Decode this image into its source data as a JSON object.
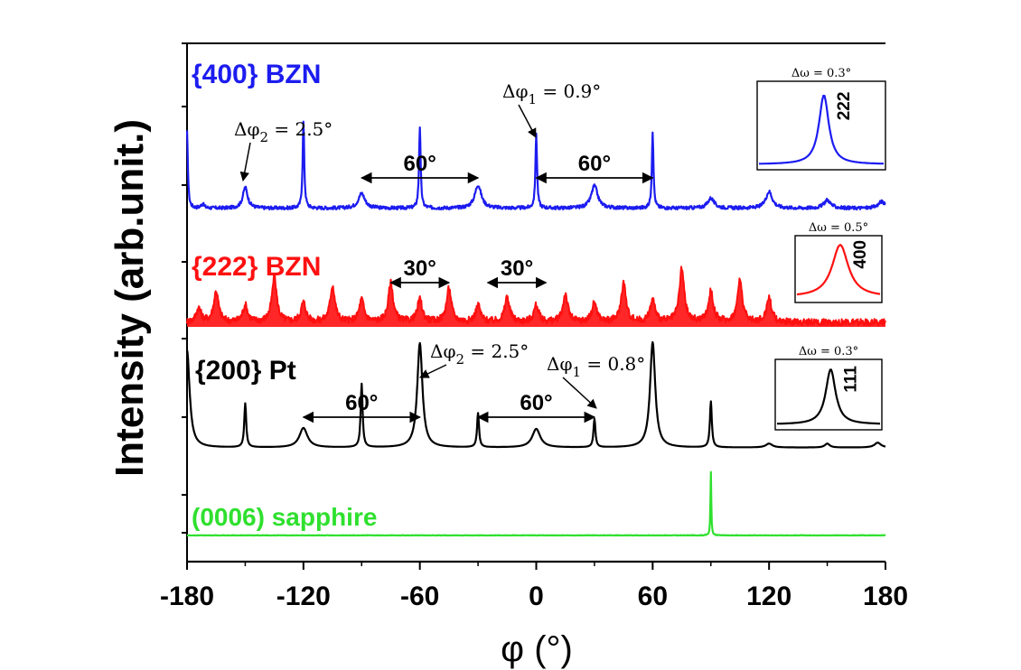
{
  "chart_data": {
    "type": "line",
    "xlabel": "φ (°)",
    "ylabel": "Intensity (arb.unit.)",
    "xlim": [
      -180,
      180
    ],
    "x_ticks": [
      -180,
      -120,
      -60,
      0,
      60,
      120,
      180
    ],
    "x_tick_labels": [
      "-180",
      "-120",
      "-60",
      "0",
      "60",
      "120",
      "180"
    ],
    "series": [
      {
        "name": "{400} BZN",
        "color": "#1c1cf0",
        "baseline": 0.08,
        "noise": 0.02,
        "peaks": [
          {
            "x": -180,
            "h": 0.92,
            "w": 0.5
          },
          {
            "x": -172,
            "h": 0.05,
            "w": 1.0
          },
          {
            "x": -150,
            "h": 0.25,
            "w": 1.5
          },
          {
            "x": -120,
            "h": 1.04,
            "w": 0.5
          },
          {
            "x": -90,
            "h": 0.18,
            "w": 2.0
          },
          {
            "x": -60,
            "h": 0.98,
            "w": 0.5
          },
          {
            "x": -30,
            "h": 0.28,
            "w": 2.0
          },
          {
            "x": 0,
            "h": 0.9,
            "w": 0.5
          },
          {
            "x": 30,
            "h": 0.27,
            "w": 2.0
          },
          {
            "x": 60,
            "h": 0.92,
            "w": 0.5
          },
          {
            "x": 90,
            "h": 0.12,
            "w": 2.0
          },
          {
            "x": 120,
            "h": 0.2,
            "w": 2.0
          },
          {
            "x": 150,
            "h": 0.1,
            "w": 2.0
          },
          {
            "x": 178,
            "h": 0.08,
            "w": 2.0
          }
        ]
      },
      {
        "name": "{222} BZN",
        "color": "#ff1010",
        "baseline": 0.08,
        "noise": 0.06,
        "peaks": [
          {
            "x": -174,
            "h": 0.25,
            "w": 1.5
          },
          {
            "x": -165,
            "h": 0.55,
            "w": 1.5
          },
          {
            "x": -150,
            "h": 0.3,
            "w": 1.5
          },
          {
            "x": -135,
            "h": 0.8,
            "w": 1.5
          },
          {
            "x": -120,
            "h": 0.35,
            "w": 1.5
          },
          {
            "x": -105,
            "h": 0.65,
            "w": 1.5
          },
          {
            "x": -90,
            "h": 0.4,
            "w": 1.5
          },
          {
            "x": -75,
            "h": 0.7,
            "w": 1.5
          },
          {
            "x": -60,
            "h": 0.4,
            "w": 1.5
          },
          {
            "x": -45,
            "h": 0.6,
            "w": 1.5
          },
          {
            "x": -30,
            "h": 0.3,
            "w": 1.5
          },
          {
            "x": -15,
            "h": 0.45,
            "w": 1.5
          },
          {
            "x": 0,
            "h": 0.3,
            "w": 1.5
          },
          {
            "x": 15,
            "h": 0.5,
            "w": 1.5
          },
          {
            "x": 30,
            "h": 0.35,
            "w": 1.5
          },
          {
            "x": 45,
            "h": 0.7,
            "w": 1.5
          },
          {
            "x": 60,
            "h": 0.4,
            "w": 1.5
          },
          {
            "x": 75,
            "h": 0.95,
            "w": 1.5
          },
          {
            "x": 90,
            "h": 0.55,
            "w": 1.5
          },
          {
            "x": 105,
            "h": 0.75,
            "w": 1.5
          },
          {
            "x": 120,
            "h": 0.45,
            "w": 1.5
          }
        ]
      },
      {
        "name": "{200} Pt",
        "color": "#000000",
        "baseline": 0.04,
        "noise": 0.0,
        "peaks": [
          {
            "x": -180,
            "h": 1.0,
            "w": 1.6
          },
          {
            "x": -150,
            "h": 0.45,
            "w": 0.6
          },
          {
            "x": -120,
            "h": 0.2,
            "w": 2.5
          },
          {
            "x": -90,
            "h": 0.65,
            "w": 0.6
          },
          {
            "x": -60,
            "h": 1.07,
            "w": 1.6
          },
          {
            "x": -30,
            "h": 0.35,
            "w": 0.6
          },
          {
            "x": 0,
            "h": 0.19,
            "w": 2.5
          },
          {
            "x": 30,
            "h": 0.29,
            "w": 0.6
          },
          {
            "x": 60,
            "h": 1.08,
            "w": 1.6
          },
          {
            "x": 90,
            "h": 0.47,
            "w": 0.6
          },
          {
            "x": 120,
            "h": 0.04,
            "w": 2.0
          },
          {
            "x": 150,
            "h": 0.04,
            "w": 1.5
          },
          {
            "x": 176,
            "h": 0.05,
            "w": 2.0
          }
        ]
      },
      {
        "name": "(0006) sapphire",
        "color": "#2fe02f",
        "baseline": 0.0,
        "noise": 0.004,
        "peaks": [
          {
            "x": 90,
            "h": 0.68,
            "w": 0.25
          }
        ]
      }
    ],
    "annotations": [
      {
        "text": "Δφ",
        "sub": "2",
        "rest": " = 2.5°",
        "series": "{400} BZN",
        "x": -150
      },
      {
        "text": "Δφ",
        "sub": "1",
        "rest": " = 0.9°",
        "series": "{400} BZN",
        "x": 0
      },
      {
        "text": "60°",
        "series": "{400} BZN",
        "from": -90,
        "to": -30
      },
      {
        "text": "60°",
        "series": "{400} BZN",
        "from": 0,
        "to": 60
      },
      {
        "text": "30°",
        "series": "{222} BZN",
        "from": -75,
        "to": -45
      },
      {
        "text": "30°",
        "series": "{222} BZN",
        "from": -25,
        "to": 5
      },
      {
        "text": "Δφ",
        "sub": "2",
        "rest": " = 2.5°",
        "series": "{200} Pt",
        "x": -60
      },
      {
        "text": "Δφ",
        "sub": "1",
        "rest": " = 0.8°",
        "series": "{200} Pt",
        "x": 30
      },
      {
        "text": "60°",
        "series": "{200} Pt",
        "from": -120,
        "to": -60
      },
      {
        "text": "60°",
        "series": "{200} Pt",
        "from": -30,
        "to": 30
      }
    ],
    "insets": [
      {
        "series": "{400} BZN",
        "title": "Δω = 0.3°",
        "label": "222",
        "color": "#1c1cf0",
        "fwhm": 0.3
      },
      {
        "series": "{222} BZN",
        "title": "Δω = 0.5°",
        "label": "400",
        "color": "#ff1010",
        "fwhm": 0.5
      },
      {
        "series": "{200} Pt",
        "title": "Δω = 0.3°",
        "label": "111",
        "color": "#000000",
        "fwhm": 0.3
      }
    ]
  }
}
